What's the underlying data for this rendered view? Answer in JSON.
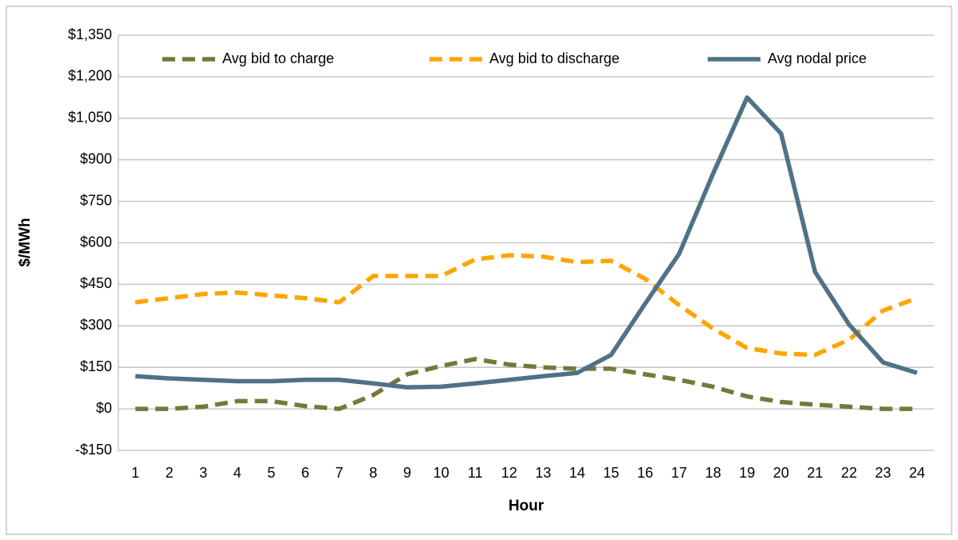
{
  "chart_data": {
    "type": "line",
    "ylabel": "$/MWh",
    "xlabel": "Hour",
    "categories": [
      "1",
      "2",
      "3",
      "4",
      "5",
      "6",
      "7",
      "8",
      "9",
      "10",
      "11",
      "12",
      "13",
      "14",
      "15",
      "16",
      "17",
      "18",
      "19",
      "20",
      "21",
      "22",
      "23",
      "24"
    ],
    "series": [
      {
        "name": "Avg bid to charge",
        "color": "#77773c",
        "style": "dashed",
        "values": [
          0,
          0,
          8,
          28,
          28,
          10,
          0,
          50,
          125,
          155,
          180,
          160,
          150,
          145,
          145,
          125,
          105,
          80,
          45,
          25,
          15,
          8,
          0,
          0
        ]
      },
      {
        "name": "Avg bid to discharge",
        "color": "#ffa500",
        "style": "dashed",
        "values": [
          385,
          400,
          415,
          420,
          410,
          400,
          385,
          480,
          480,
          480,
          540,
          555,
          550,
          530,
          535,
          470,
          375,
          290,
          220,
          200,
          195,
          250,
          355,
          400
        ]
      },
      {
        "name": "Avg nodal price",
        "color": "#4f7286",
        "style": "solid",
        "values": [
          118,
          110,
          105,
          100,
          100,
          105,
          105,
          92,
          78,
          80,
          92,
          105,
          118,
          130,
          195,
          380,
          560,
          850,
          1125,
          995,
          495,
          305,
          168,
          130
        ]
      }
    ],
    "ylim": [
      -150,
      1350
    ],
    "yticks": [
      {
        "value": -150,
        "label": "-$150"
      },
      {
        "value": 0,
        "label": "$0"
      },
      {
        "value": 150,
        "label": "$150"
      },
      {
        "value": 300,
        "label": "$300"
      },
      {
        "value": 450,
        "label": "$450"
      },
      {
        "value": 600,
        "label": "$600"
      },
      {
        "value": 750,
        "label": "$750"
      },
      {
        "value": 900,
        "label": "$900"
      },
      {
        "value": 1050,
        "label": "$1,050"
      },
      {
        "value": 1200,
        "label": "$1,200"
      },
      {
        "value": 1350,
        "label": "$1,350"
      }
    ],
    "grid": true,
    "legend": "top"
  }
}
